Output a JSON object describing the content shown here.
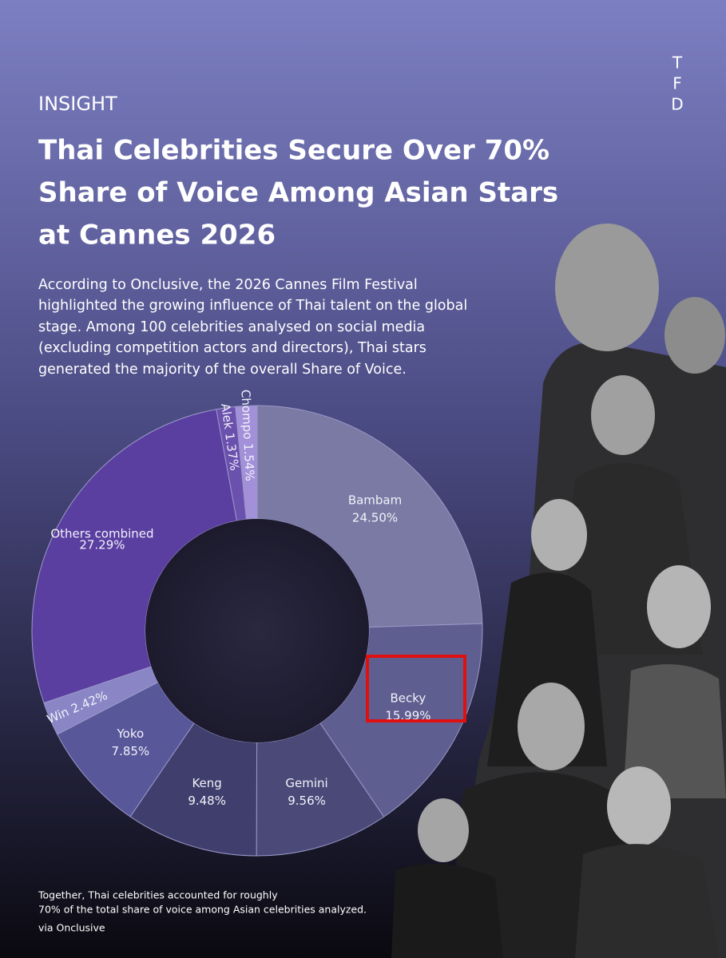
{
  "brand": [
    "T",
    "F",
    "D"
  ],
  "kicker": "INSIGHT",
  "title_lines": [
    "Thai Celebrities Secure Over 70%",
    "Share of Voice Among Asian Stars",
    "at Cannes 2026"
  ],
  "body_lines": [
    "According to Onclusive, the 2026 Cannes Film Festival",
    "highlighted the growing influence of Thai talent on the global",
    "stage. Among 100 celebrities analysed on social media",
    "(excluding competition actors and directors), Thai stars",
    "generated the majority of the overall Share of Voice."
  ],
  "chart_data": {
    "type": "donut",
    "categories": [
      "Bambam",
      "Becky",
      "Gemini",
      "Keng",
      "Yoko",
      "Win",
      "Others combined",
      "Alek",
      "Chompo"
    ],
    "values": [
      24.5,
      15.99,
      9.56,
      9.48,
      7.85,
      2.42,
      27.29,
      1.37,
      1.54
    ],
    "value_labels": [
      "24.50%",
      "15.99%",
      "9.56%",
      "9.48%",
      "7.85%",
      "2.42%",
      "27.29%",
      "1.37%",
      "1.54%"
    ],
    "colors": [
      "#7a7aa4",
      "#5f5e90",
      "#4b4978",
      "#403e6c",
      "#585799",
      "#8a86c6",
      "#5a3fa1",
      "#6b51ae",
      "#a290d8"
    ]
  },
  "footnote_lines": [
    "Together, Thai celebrities accounted for roughly",
    "70% of the total share of voice among Asian celebrities analyzed."
  ],
  "source": "via Onclusive"
}
